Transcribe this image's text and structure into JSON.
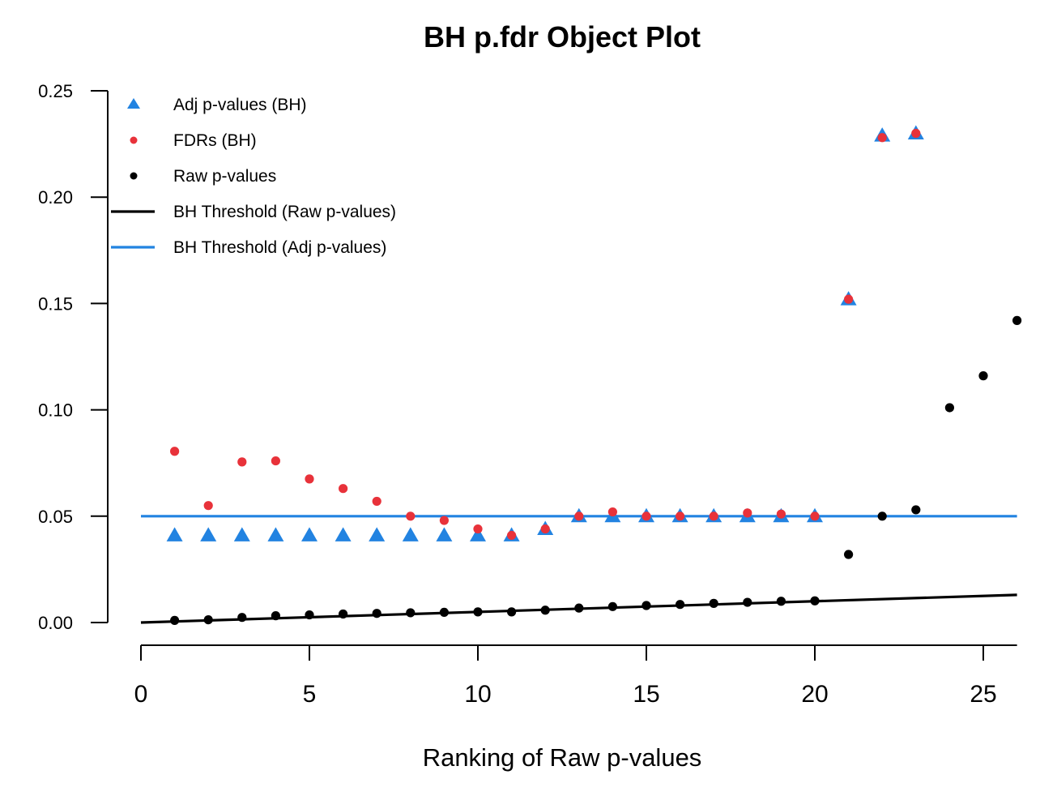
{
  "chart_data": {
    "type": "scatter",
    "title": "BH p.fdr Object Plot",
    "xlabel": "Ranking of Raw p-values",
    "ylabel": "",
    "xlim": [
      0,
      26
    ],
    "ylim": [
      0,
      0.25
    ],
    "xticks": [
      0,
      5,
      10,
      15,
      20,
      25
    ],
    "yticks": [
      0.0,
      0.05,
      0.1,
      0.15,
      0.2,
      0.25
    ],
    "ytick_labels": [
      "0.00",
      "0.05",
      "0.10",
      "0.15",
      "0.20",
      "0.25"
    ],
    "grid": false,
    "legend_position": "top-left",
    "legend": [
      {
        "label": "Adj p-values (BH)",
        "symbol": "triangle",
        "color": "#2283e1"
      },
      {
        "label": "FDRs (BH)",
        "symbol": "dot",
        "color": "#e8323a"
      },
      {
        "label": "Raw p-values",
        "symbol": "dot",
        "color": "#000000"
      },
      {
        "label": "BH Threshold (Raw p-values)",
        "symbol": "line",
        "color": "#000000"
      },
      {
        "label": "BH Threshold (Adj p-values)",
        "symbol": "line",
        "color": "#2283e1"
      }
    ],
    "series": [
      {
        "name": "Adj p-values (BH)",
        "marker": "triangle",
        "color": "#2283e1",
        "x": [
          1,
          2,
          3,
          4,
          5,
          6,
          7,
          8,
          9,
          10,
          11,
          12,
          13,
          14,
          15,
          16,
          17,
          18,
          19,
          20,
          21,
          22,
          23
        ],
        "y": [
          0.041,
          0.041,
          0.041,
          0.041,
          0.041,
          0.041,
          0.041,
          0.041,
          0.041,
          0.041,
          0.041,
          0.044,
          0.05,
          0.05,
          0.05,
          0.05,
          0.05,
          0.05,
          0.05,
          0.05,
          0.152,
          0.229,
          0.23
        ]
      },
      {
        "name": "FDRs (BH)",
        "marker": "dot",
        "color": "#e8323a",
        "x": [
          1,
          2,
          3,
          4,
          5,
          6,
          7,
          8,
          9,
          10,
          11,
          12,
          13,
          14,
          15,
          16,
          17,
          18,
          19,
          20,
          21,
          22,
          23
        ],
        "y": [
          0.0805,
          0.055,
          0.0755,
          0.076,
          0.0675,
          0.063,
          0.057,
          0.05,
          0.048,
          0.044,
          0.041,
          0.044,
          0.05,
          0.052,
          0.05,
          0.05,
          0.05,
          0.0515,
          0.051,
          0.05,
          0.152,
          0.228,
          0.23
        ]
      },
      {
        "name": "Raw p-values",
        "marker": "dot",
        "color": "#000000",
        "x": [
          1,
          2,
          3,
          4,
          5,
          6,
          7,
          8,
          9,
          10,
          11,
          12,
          13,
          14,
          15,
          16,
          17,
          18,
          19,
          20,
          21,
          22,
          23,
          24,
          25,
          26
        ],
        "y": [
          0.001,
          0.0013,
          0.0024,
          0.0032,
          0.0036,
          0.004,
          0.0043,
          0.0046,
          0.0048,
          0.005,
          0.005,
          0.0058,
          0.0068,
          0.0075,
          0.008,
          0.0085,
          0.009,
          0.0095,
          0.01,
          0.0102,
          0.032,
          0.05,
          0.053,
          0.101,
          0.116,
          0.142
        ]
      }
    ],
    "lines": [
      {
        "name": "BH Threshold (Raw p-values)",
        "color": "#000000",
        "x": [
          0,
          26
        ],
        "y": [
          0.0,
          0.013
        ]
      },
      {
        "name": "BH Threshold (Adj p-values)",
        "color": "#2283e1",
        "x": [
          0,
          26
        ],
        "y": [
          0.05,
          0.05
        ]
      }
    ]
  }
}
